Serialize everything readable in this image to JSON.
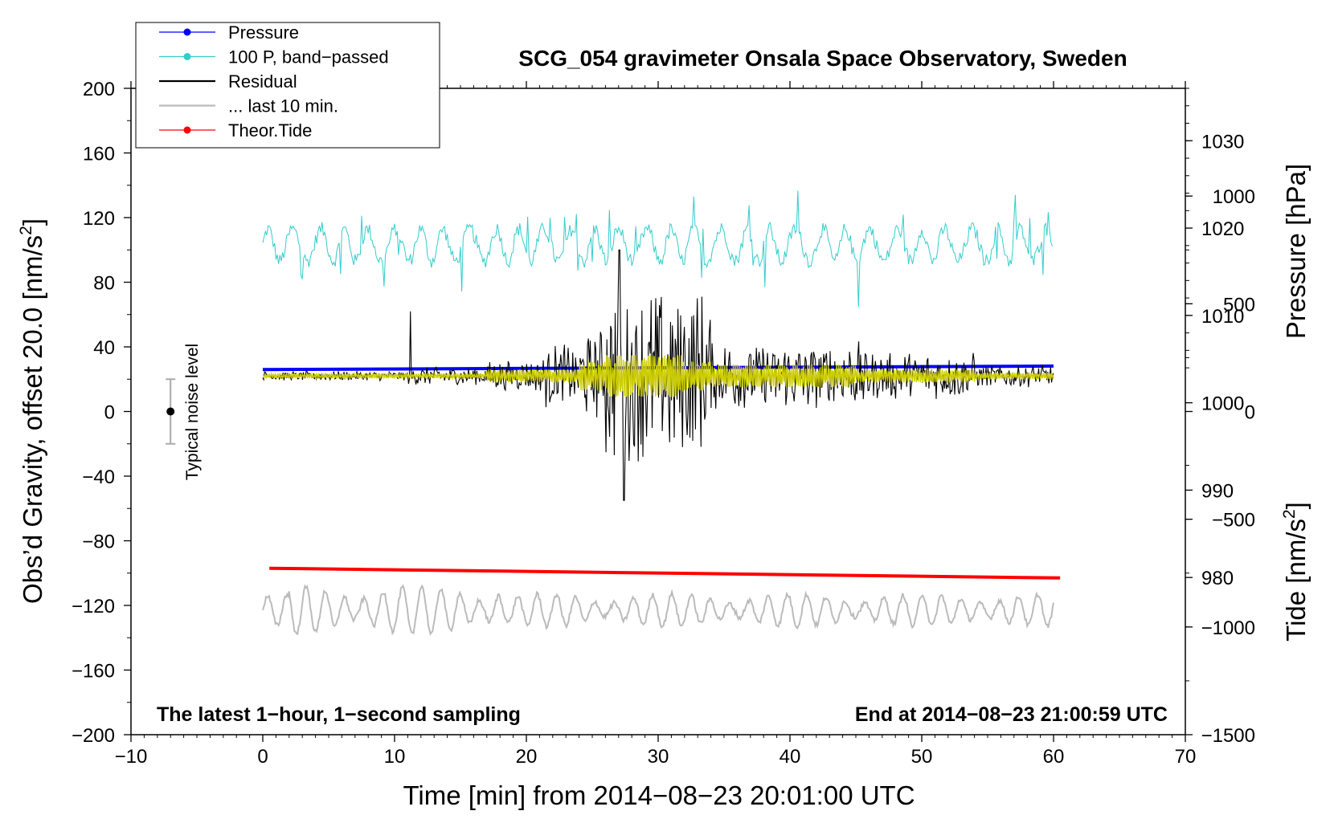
{
  "chart_data": {
    "type": "line",
    "title": "SCG_054 gravimeter Onsala Space Observatory, Sweden",
    "xlabel": "Time [min] from 2014−08−23 20:01:00 UTC",
    "ylabel": "Obs’d Gravity, offset 20.0 [nm/s",
    "ylabel_sup": "2",
    "ylabel_end": "]",
    "y2label_pressure": "Pressure [hPa]",
    "y2label_tide": "Tide [nm/s",
    "y2label_tide_sup": "2",
    "y2label_tide_end": "]",
    "xlim": [
      -10,
      70
    ],
    "ylim": [
      -200,
      200
    ],
    "xticks": [
      "−10",
      "0",
      "10",
      "20",
      "30",
      "40",
      "50",
      "60",
      "70"
    ],
    "yticks": [
      "−200",
      "−160",
      "−120",
      "−80",
      "−40",
      "0",
      "40",
      "80",
      "120",
      "160",
      "200"
    ],
    "pressure_axis": {
      "ticks": [
        "980",
        "990",
        "1000",
        "1010",
        "1020",
        "1030"
      ],
      "range_hpa": [
        962,
        1036
      ]
    },
    "tide_axis": {
      "ticks": [
        "−1500",
        "−1000",
        "−500",
        "0",
        "500",
        "1000"
      ],
      "range": [
        -1500,
        1500
      ]
    },
    "annotation_left": "The latest 1−hour, 1−second sampling",
    "annotation_right": "End at 2014−08−23 21:00:59 UTC",
    "noise_label": "Typical noise level",
    "noise_bar": {
      "x": -7,
      "y": 0,
      "err": 20
    },
    "legend": [
      {
        "label": "Pressure",
        "color": "#0000ff",
        "marker": true
      },
      {
        "label": "100 P, band−passed",
        "color": "#33cccc",
        "marker": true
      },
      {
        "label": "Residual",
        "color": "#000000",
        "marker": false
      },
      {
        "label": "... last 10 min.",
        "color": "#bbbbbb",
        "marker": false
      },
      {
        "label": "Theor.Tide",
        "color": "#ff0000",
        "marker": true
      }
    ],
    "series": [
      {
        "name": "Pressure",
        "color": "#0000ff",
        "x": [
          0,
          60
        ],
        "values_hpa": [
          1003.8,
          1004.2
        ]
      },
      {
        "name": "100 P, band-passed",
        "color": "#33cccc",
        "x_range": [
          0,
          60
        ],
        "baseline": 103,
        "amplitude": 10
      },
      {
        "name": "Residual",
        "color": "#000000",
        "x_range": [
          0,
          60
        ],
        "baseline": 22,
        "peak_window_min": [
          26,
          34
        ]
      },
      {
        "name": "Residual (filtered)",
        "color": "#cccc00",
        "x_range": [
          0,
          60
        ],
        "baseline": 22
      },
      {
        "name": "... last 10 min.",
        "color": "#bbbbbb",
        "x_range": [
          0,
          60
        ],
        "baseline": -123,
        "amplitude": 10
      },
      {
        "name": "Theor.Tide",
        "color": "#ff0000",
        "x": [
          0.5,
          60.5
        ],
        "values": [
          -97,
          -103
        ]
      }
    ]
  }
}
